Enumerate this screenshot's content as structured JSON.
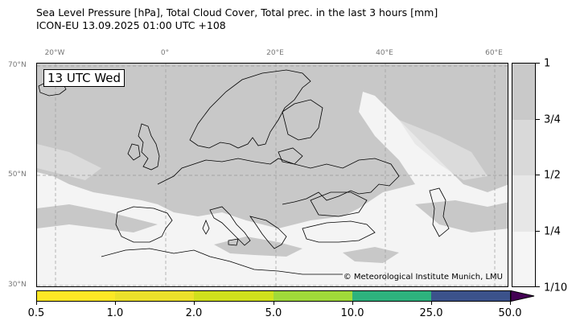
{
  "header": {
    "title_line1": "Sea Level Pressure [hPa], Total Cloud Cover, Total prec. in the last 3 hours [mm]",
    "title_line2": "ICON-EU 13.09.2025 01:00 UTC +108"
  },
  "map": {
    "time_label": "13 UTC Wed",
    "copyright": "© Meteorological Institute Munich, LMU",
    "lon_labels": [
      "20°W",
      "0°",
      "20°E",
      "40°E",
      "60°E"
    ],
    "lat_labels": [
      "70°N",
      "50°N",
      "30°N"
    ],
    "colors": {
      "land_cloud": "#c8c8c8",
      "sea_bg": "#f4f4f4",
      "coastline": "#000000",
      "gridline": "#999999"
    }
  },
  "cloud_cover_legend": {
    "labels": [
      "1",
      "3/4",
      "1/2",
      "1/4",
      "1/10"
    ],
    "colors": [
      "#c9c9c9",
      "#d9d9d9",
      "#e7e7e7",
      "#f5f5f5"
    ]
  },
  "precip_legend": {
    "labels": [
      "0.5",
      "1.0",
      "2.0",
      "5.0",
      "10.0",
      "25.0",
      "50.0"
    ],
    "colors": [
      "#fde725",
      "#ece12a",
      "#d0e11c",
      "#a0da39",
      "#2db27d",
      "#3b528b",
      "#440154"
    ]
  }
}
